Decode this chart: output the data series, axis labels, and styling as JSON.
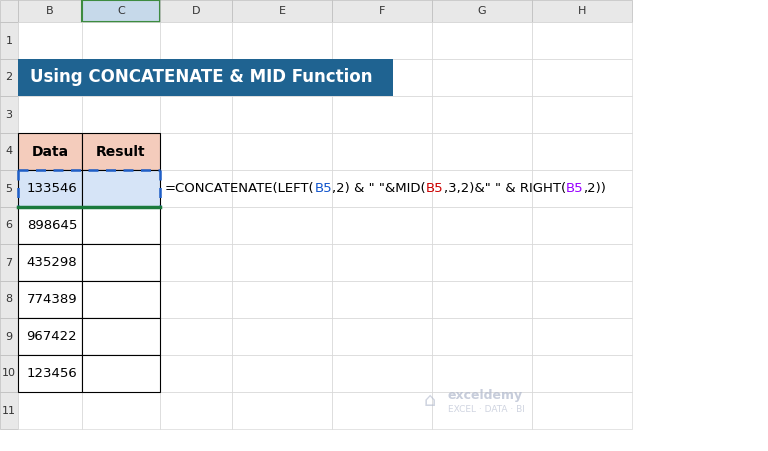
{
  "title": "Using CONCATENATE & MID Function",
  "title_bg": "#1F6391",
  "title_color": "#FFFFFF",
  "col_header_bg": "#F4CCBC",
  "col_headers": [
    "Data",
    "Result"
  ],
  "data_values": [
    "133546",
    "898645",
    "435298",
    "774389",
    "967422",
    "123456"
  ],
  "formula_parts": [
    {
      "text": "=CONCATENATE(LEFT(",
      "color": "#000000"
    },
    {
      "text": "B5",
      "color": "#1155CC"
    },
    {
      "text": ",2) & \" \"&MID(",
      "color": "#000000"
    },
    {
      "text": "B5",
      "color": "#CC0000"
    },
    {
      "text": ",3,2)&\" \" & RIGHT(",
      "color": "#000000"
    },
    {
      "text": "B5",
      "color": "#9900FF"
    },
    {
      "text": ",2))",
      "color": "#000000"
    }
  ],
  "bg_color": "#FFFFFF",
  "selected_cell_border": "#1F5FC8",
  "selected_cell_fill": "#D6E4F7",
  "bottom_border_color": "#1A7A3C",
  "header_bg": "#E8E8E8",
  "header_selected_bg": "#C6D9EA",
  "header_selected_border": "#3D8B40",
  "grid_light": "#D0D0D0",
  "watermark_color": "#B0B8CC"
}
